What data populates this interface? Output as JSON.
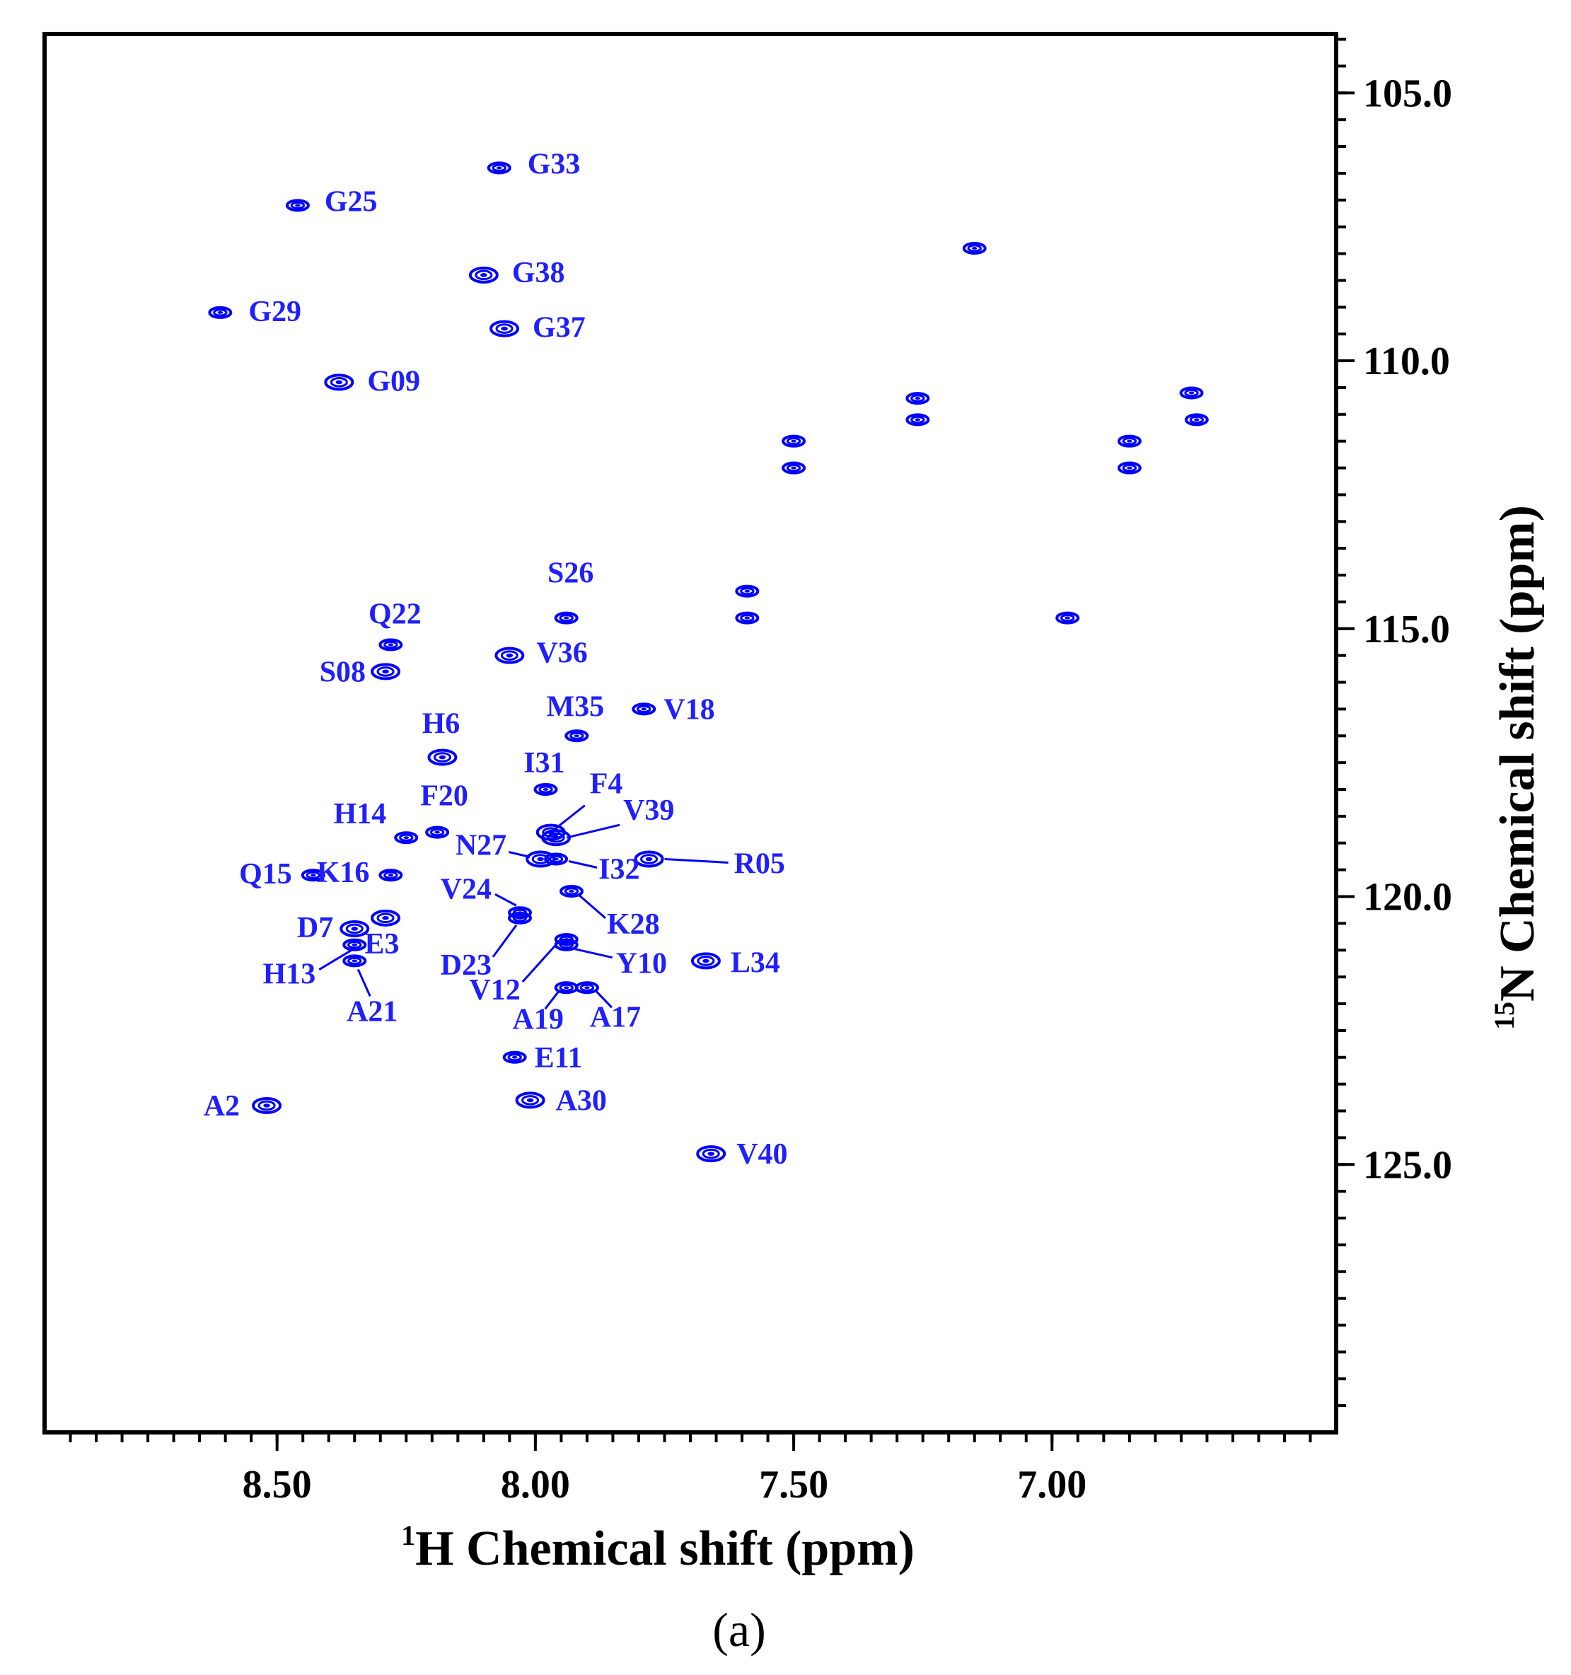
{
  "chart_data": {
    "type": "scatter",
    "panel_label": "(a)",
    "x_axis": {
      "label_sup": "1",
      "label_text": "H Chemical shift (ppm)",
      "reversed": true,
      "range": [
        8.95,
        6.45
      ],
      "ticks": [
        8.5,
        8.0,
        7.5,
        7.0
      ],
      "tick_labels": [
        "8.50",
        "8.00",
        "7.50",
        "7.00"
      ],
      "minor_step": 0.05
    },
    "y_axis": {
      "position": "right",
      "label_sup": "15",
      "label_text": "N Chemical shift (ppm)",
      "reversed": true,
      "range": [
        103.9,
        130.0
      ],
      "ticks": [
        105.0,
        110.0,
        115.0,
        120.0,
        125.0
      ],
      "tick_labels": [
        "105.0",
        "110.0",
        "115.0",
        "120.0",
        "125.0"
      ],
      "minor_step": 0.5
    },
    "grid": false,
    "peak_color": "#0000ff",
    "label_color": "#1f1fff",
    "peaks": [
      {
        "name": "G33",
        "h": 8.07,
        "n": 106.4
      },
      {
        "name": "G25",
        "h": 8.46,
        "n": 107.1
      },
      {
        "name": "G38",
        "h": 8.1,
        "n": 108.4
      },
      {
        "name": "G29",
        "h": 8.61,
        "n": 109.1
      },
      {
        "name": "G37",
        "h": 8.06,
        "n": 109.4
      },
      {
        "name": "G09",
        "h": 8.38,
        "n": 110.4
      },
      {
        "name": "S26",
        "h": 7.94,
        "n": 114.8
      },
      {
        "name": "Q22",
        "h": 8.28,
        "n": 115.3
      },
      {
        "name": "V36",
        "h": 8.05,
        "n": 115.5
      },
      {
        "name": "S08",
        "h": 8.29,
        "n": 115.8
      },
      {
        "name": "V18",
        "h": 7.79,
        "n": 116.5
      },
      {
        "name": "M35",
        "h": 7.92,
        "n": 117.0
      },
      {
        "name": "H6",
        "h": 8.18,
        "n": 117.4
      },
      {
        "name": "I31",
        "h": 7.98,
        "n": 118.0
      },
      {
        "name": "F4",
        "h": 7.97,
        "n": 118.8
      },
      {
        "name": "V39",
        "h": 7.96,
        "n": 118.9
      },
      {
        "name": "F20",
        "h": 8.19,
        "n": 118.8
      },
      {
        "name": "H14",
        "h": 8.25,
        "n": 118.9
      },
      {
        "name": "N27",
        "h": 7.99,
        "n": 119.3
      },
      {
        "name": "I32",
        "h": 7.96,
        "n": 119.3
      },
      {
        "name": "R05",
        "h": 7.78,
        "n": 119.3
      },
      {
        "name": "K16",
        "h": 8.28,
        "n": 119.6
      },
      {
        "name": "Q15",
        "h": 8.43,
        "n": 119.6
      },
      {
        "name": "K28",
        "h": 7.93,
        "n": 119.9
      },
      {
        "name": "E3",
        "h": 8.29,
        "n": 120.4
      },
      {
        "name": "V24",
        "h": 8.03,
        "n": 120.3
      },
      {
        "name": "D23",
        "h": 8.03,
        "n": 120.4
      },
      {
        "name": "D7",
        "h": 8.35,
        "n": 120.6
      },
      {
        "name": "H13",
        "h": 8.35,
        "n": 120.9
      },
      {
        "name": "Y10",
        "h": 7.94,
        "n": 120.9
      },
      {
        "name": "V12",
        "h": 7.94,
        "n": 120.8
      },
      {
        "name": "A21",
        "h": 8.35,
        "n": 121.2
      },
      {
        "name": "L34",
        "h": 7.67,
        "n": 121.2
      },
      {
        "name": "A19",
        "h": 7.94,
        "n": 121.7
      },
      {
        "name": "A17",
        "h": 7.9,
        "n": 121.7
      },
      {
        "name": "E11",
        "h": 8.04,
        "n": 123.0
      },
      {
        "name": "A2",
        "h": 8.52,
        "n": 123.9
      },
      {
        "name": "A30",
        "h": 8.01,
        "n": 123.8
      },
      {
        "name": "V40",
        "h": 7.66,
        "n": 124.8
      }
    ],
    "unassigned_peaks": [
      {
        "h": 7.15,
        "n": 107.9
      },
      {
        "h": 7.26,
        "n": 110.7
      },
      {
        "h": 7.26,
        "n": 111.1
      },
      {
        "h": 6.73,
        "n": 110.6
      },
      {
        "h": 6.72,
        "n": 111.1
      },
      {
        "h": 7.5,
        "n": 111.5
      },
      {
        "h": 7.5,
        "n": 112.0
      },
      {
        "h": 6.85,
        "n": 111.5
      },
      {
        "h": 6.85,
        "n": 112.0
      },
      {
        "h": 7.59,
        "n": 114.3
      },
      {
        "h": 7.59,
        "n": 114.8
      },
      {
        "h": 6.97,
        "n": 114.8
      }
    ]
  }
}
